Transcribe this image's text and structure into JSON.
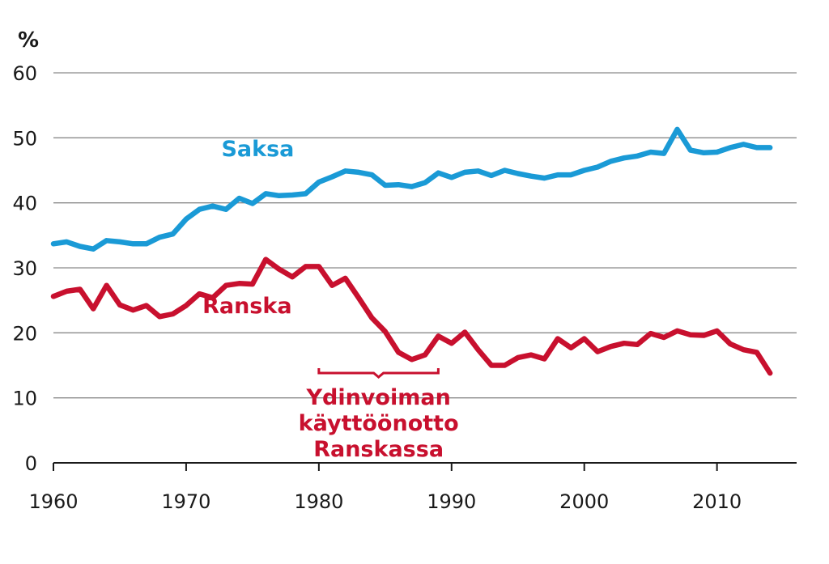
{
  "chart_data": {
    "type": "line",
    "ylabel": "%",
    "ylim": [
      0,
      60
    ],
    "xlim": [
      1960,
      2016
    ],
    "yticks": [
      0,
      10,
      20,
      30,
      40,
      50,
      60
    ],
    "xticks": [
      1960,
      1970,
      1980,
      1990,
      2000,
      2010
    ],
    "grid": true,
    "x": [
      1960,
      1961,
      1962,
      1963,
      1964,
      1965,
      1966,
      1967,
      1968,
      1969,
      1970,
      1971,
      1972,
      1973,
      1974,
      1975,
      1976,
      1977,
      1978,
      1979,
      1980,
      1981,
      1982,
      1983,
      1984,
      1985,
      1986,
      1987,
      1988,
      1989,
      1990,
      1991,
      1992,
      1993,
      1994,
      1995,
      1996,
      1997,
      1998,
      1999,
      2000,
      2001,
      2002,
      2003,
      2004,
      2005,
      2006,
      2007,
      2008,
      2009,
      2010,
      2011,
      2012,
      2013,
      2014
    ],
    "series": [
      {
        "name": "Saksa",
        "color": "#1a9ad6",
        "values": [
          33.7,
          34.0,
          33.3,
          32.9,
          34.2,
          34.0,
          33.7,
          33.7,
          34.7,
          35.2,
          37.5,
          39.0,
          39.5,
          39.0,
          40.7,
          39.9,
          41.4,
          41.1,
          41.2,
          41.4,
          43.2,
          44.0,
          44.9,
          44.7,
          44.3,
          42.7,
          42.8,
          42.5,
          43.1,
          44.6,
          43.9,
          44.7,
          44.9,
          44.2,
          45.0,
          44.5,
          44.1,
          43.8,
          44.3,
          44.3,
          45.0,
          45.5,
          46.4,
          46.9,
          47.2,
          47.8,
          47.6,
          51.3,
          48.1,
          47.7,
          47.8,
          48.5,
          49.0,
          48.5,
          48.5
        ]
      },
      {
        "name": "Ranska",
        "color": "#c8102e",
        "values": [
          25.6,
          26.4,
          26.7,
          23.7,
          27.3,
          24.3,
          23.5,
          24.2,
          22.5,
          22.9,
          24.2,
          26.0,
          25.4,
          27.3,
          27.6,
          27.5,
          31.3,
          29.8,
          28.6,
          30.2,
          30.2,
          27.3,
          28.4,
          25.4,
          22.3,
          20.2,
          17.0,
          15.9,
          16.6,
          19.5,
          18.4,
          20.1,
          17.4,
          15.0,
          15.0,
          16.2,
          16.6,
          16.0,
          19.1,
          17.7,
          19.1,
          17.1,
          17.9,
          18.4,
          18.2,
          19.9,
          19.3,
          20.3,
          19.7,
          19.6,
          20.3,
          18.3,
          17.4,
          17.0,
          13.8
        ]
      }
    ],
    "annotations": [
      {
        "lines": [
          "Ydinvoiman",
          "käyttöönotto",
          "Ranskassa"
        ],
        "x_from": 1980,
        "x_to": 1989
      }
    ]
  }
}
